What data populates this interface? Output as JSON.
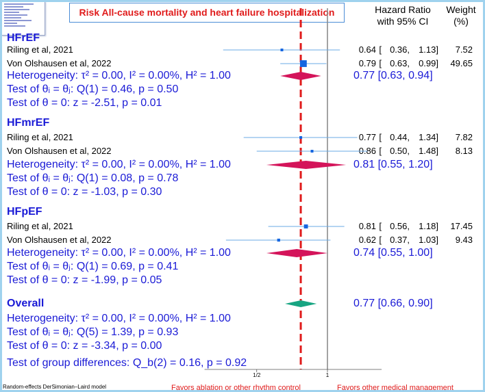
{
  "title": "Risk All-cause mortality and heart failure hospitalization",
  "columns": {
    "effect": "Hazard Ratio\nwith 95% CI",
    "weight": "Weight\n(%)"
  },
  "chart_data": {
    "type": "forest",
    "scale": "log",
    "xlim": [
      0.3,
      1.7
    ],
    "x_ticks": [
      {
        "value": 0.5,
        "label": "1/2"
      },
      {
        "value": 1,
        "label": "1"
      }
    ],
    "reference_line": 1,
    "overall_line": 0.77,
    "favors_left": "Favors ablation or other rhythm control",
    "favors_right": "Favors other medical management",
    "model_note": "Random-effects DerSimonian–Laird model",
    "colors": {
      "marker": "#1565e0",
      "ci": "#6aa8e6",
      "subgroup_diamond": "#d4145a",
      "overall_diamond": "#17a582",
      "overall_line": "#e01b1b",
      "reference_line": "#8c8c8c",
      "text_blue": "#1a1ad6"
    },
    "groups": [
      {
        "name": "HFrEF",
        "studies": [
          {
            "label": "Riling et al, 2021",
            "hr": 0.64,
            "lo": 0.36,
            "hi": 1.13,
            "hr_text": "0.64",
            "lo_text": "0.36,",
            "hi_text": "1.13]",
            "weight": "7.52"
          },
          {
            "label": "Von Olshausen et al, 2022",
            "hr": 0.79,
            "lo": 0.63,
            "hi": 0.99,
            "hr_text": "0.79",
            "lo_text": "0.63,",
            "hi_text": "0.99]",
            "weight": "49.65"
          }
        ],
        "heterogeneity": "Heterogeneity: τ² = 0.00, I² = 0.00%, H² = 1.00",
        "test_equal": "Test of θᵢ = θⱼ: Q(1) = 0.46, p = 0.50",
        "test_zero": "Test of θ = 0: z = -2.51, p = 0.01",
        "pooled": {
          "hr": 0.77,
          "lo": 0.63,
          "hi": 0.94,
          "text": "0.77 [0.63, 0.94]"
        }
      },
      {
        "name": "HFmrEF",
        "studies": [
          {
            "label": "Riling et al, 2021",
            "hr": 0.77,
            "lo": 0.44,
            "hi": 1.34,
            "hr_text": "0.77",
            "lo_text": "0.44,",
            "hi_text": "1.34]",
            "weight": "7.82"
          },
          {
            "label": "Von Olshausen et al, 2022",
            "hr": 0.86,
            "lo": 0.5,
            "hi": 1.48,
            "hr_text": "0.86",
            "lo_text": "0.50,",
            "hi_text": "1.48]",
            "weight": "8.13"
          }
        ],
        "heterogeneity": "Heterogeneity: τ² = 0.00, I² = 0.00%, H² = 1.00",
        "test_equal": "Test of θᵢ = θⱼ: Q(1) = 0.08, p = 0.78",
        "test_zero": "Test of θ = 0: z = -1.03, p = 0.30",
        "pooled": {
          "hr": 0.81,
          "lo": 0.55,
          "hi": 1.2,
          "text": "0.81 [0.55, 1.20]"
        }
      },
      {
        "name": "HFpEF",
        "studies": [
          {
            "label": "Riling et al, 2021",
            "hr": 0.81,
            "lo": 0.56,
            "hi": 1.18,
            "hr_text": "0.81",
            "lo_text": "0.56,",
            "hi_text": "1.18]",
            "weight": "17.45"
          },
          {
            "label": "Von Olshausen et al, 2022",
            "hr": 0.62,
            "lo": 0.37,
            "hi": 1.03,
            "hr_text": "0.62",
            "lo_text": "0.37,",
            "hi_text": "1.03]",
            "weight": "9.43"
          }
        ],
        "heterogeneity": "Heterogeneity: τ² = 0.00, I² = 0.00%, H² = 1.00",
        "test_equal": "Test of θᵢ = θⱼ: Q(1) = 0.69, p = 0.41",
        "test_zero": "Test of θ = 0: z = -1.99, p = 0.05",
        "pooled": {
          "hr": 0.74,
          "lo": 0.55,
          "hi": 1.0,
          "text": "0.74 [0.55, 1.00]"
        }
      }
    ],
    "overall": {
      "name": "Overall",
      "hr": 0.77,
      "lo": 0.66,
      "hi": 0.9,
      "text": "0.77 [0.66, 0.90]",
      "heterogeneity": "Heterogeneity: τ² = 0.00, I² = 0.00%, H² = 1.00",
      "test_equal": "Test of θᵢ = θⱼ: Q(5) = 1.39, p = 0.93",
      "test_zero": "Test of θ = 0: z = -3.34, p = 0.00"
    },
    "group_differences": "Test of group differences: Q_b(2) = 0.16, p = 0.92"
  }
}
